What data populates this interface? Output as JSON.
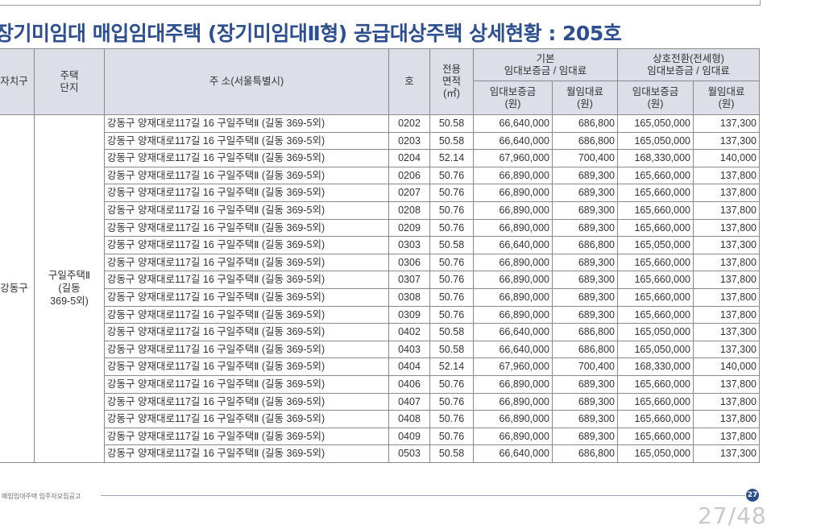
{
  "title": "장기미임대 매입임대주택 (장기미임대Ⅱ형) 공급대상주택 상세현황 : 205호",
  "table": {
    "headers": {
      "district": "자치구",
      "complex": "주택\n단지",
      "address": "주 소(서울특별시)",
      "unit": "호",
      "area": "전용\n면적\n(㎡)",
      "basic_group": "기본\n임대보증금 / 임대료",
      "convert_group": "상호전환(전세형)\n임대보증금 / 임대료",
      "deposit": "임대보증금\n(원)",
      "rent": "월임대료\n(원)"
    },
    "district": "강동구",
    "complex": "구일주택Ⅱ\n(길동\n369-5외)",
    "rows": [
      {
        "address": "강동구 양재대로117길 16 구일주택Ⅱ (길동 369-5외)",
        "unit": "0202",
        "area": "50.58",
        "basic_deposit": "66,640,000",
        "basic_rent": "686,800",
        "conv_deposit": "165,050,000",
        "conv_rent": "137,300"
      },
      {
        "address": "강동구 양재대로117길 16 구일주택Ⅱ (길동 369-5외)",
        "unit": "0203",
        "area": "50.58",
        "basic_deposit": "66,640,000",
        "basic_rent": "686,800",
        "conv_deposit": "165,050,000",
        "conv_rent": "137,300"
      },
      {
        "address": "강동구 양재대로117길 16 구일주택Ⅱ (길동 369-5외)",
        "unit": "0204",
        "area": "52.14",
        "basic_deposit": "67,960,000",
        "basic_rent": "700,400",
        "conv_deposit": "168,330,000",
        "conv_rent": "140,000"
      },
      {
        "address": "강동구 양재대로117길 16 구일주택Ⅱ (길동 369-5외)",
        "unit": "0206",
        "area": "50.76",
        "basic_deposit": "66,890,000",
        "basic_rent": "689,300",
        "conv_deposit": "165,660,000",
        "conv_rent": "137,800"
      },
      {
        "address": "강동구 양재대로117길 16 구일주택Ⅱ (길동 369-5외)",
        "unit": "0207",
        "area": "50.76",
        "basic_deposit": "66,890,000",
        "basic_rent": "689,300",
        "conv_deposit": "165,660,000",
        "conv_rent": "137,800"
      },
      {
        "address": "강동구 양재대로117길 16 구일주택Ⅱ (길동 369-5외)",
        "unit": "0208",
        "area": "50.76",
        "basic_deposit": "66,890,000",
        "basic_rent": "689,300",
        "conv_deposit": "165,660,000",
        "conv_rent": "137,800"
      },
      {
        "address": "강동구 양재대로117길 16 구일주택Ⅱ (길동 369-5외)",
        "unit": "0209",
        "area": "50.76",
        "basic_deposit": "66,890,000",
        "basic_rent": "689,300",
        "conv_deposit": "165,660,000",
        "conv_rent": "137,800"
      },
      {
        "address": "강동구 양재대로117길 16 구일주택Ⅱ (길동 369-5외)",
        "unit": "0303",
        "area": "50.58",
        "basic_deposit": "66,640,000",
        "basic_rent": "686,800",
        "conv_deposit": "165,050,000",
        "conv_rent": "137,300"
      },
      {
        "address": "강동구 양재대로117길 16 구일주택Ⅱ (길동 369-5외)",
        "unit": "0306",
        "area": "50.76",
        "basic_deposit": "66,890,000",
        "basic_rent": "689,300",
        "conv_deposit": "165,660,000",
        "conv_rent": "137,800"
      },
      {
        "address": "강동구 양재대로117길 16 구일주택Ⅱ (길동 369-5외)",
        "unit": "0307",
        "area": "50.76",
        "basic_deposit": "66,890,000",
        "basic_rent": "689,300",
        "conv_deposit": "165,660,000",
        "conv_rent": "137,800"
      },
      {
        "address": "강동구 양재대로117길 16 구일주택Ⅱ (길동 369-5외)",
        "unit": "0308",
        "area": "50.76",
        "basic_deposit": "66,890,000",
        "basic_rent": "689,300",
        "conv_deposit": "165,660,000",
        "conv_rent": "137,800"
      },
      {
        "address": "강동구 양재대로117길 16 구일주택Ⅱ (길동 369-5외)",
        "unit": "0309",
        "area": "50.76",
        "basic_deposit": "66,890,000",
        "basic_rent": "689,300",
        "conv_deposit": "165,660,000",
        "conv_rent": "137,800"
      },
      {
        "address": "강동구 양재대로117길 16 구일주택Ⅱ (길동 369-5외)",
        "unit": "0402",
        "area": "50.58",
        "basic_deposit": "66,640,000",
        "basic_rent": "686,800",
        "conv_deposit": "165,050,000",
        "conv_rent": "137,300"
      },
      {
        "address": "강동구 양재대로117길 16 구일주택Ⅱ (길동 369-5외)",
        "unit": "0403",
        "area": "50.58",
        "basic_deposit": "66,640,000",
        "basic_rent": "686,800",
        "conv_deposit": "165,050,000",
        "conv_rent": "137,300"
      },
      {
        "address": "강동구 양재대로117길 16 구일주택Ⅱ (길동 369-5외)",
        "unit": "0404",
        "area": "52.14",
        "basic_deposit": "67,960,000",
        "basic_rent": "700,400",
        "conv_deposit": "168,330,000",
        "conv_rent": "140,000"
      },
      {
        "address": "강동구 양재대로117길 16 구일주택Ⅱ (길동 369-5외)",
        "unit": "0406",
        "area": "50.76",
        "basic_deposit": "66,890,000",
        "basic_rent": "689,300",
        "conv_deposit": "165,660,000",
        "conv_rent": "137,800"
      },
      {
        "address": "강동구 양재대로117길 16 구일주택Ⅱ (길동 369-5외)",
        "unit": "0407",
        "area": "50.76",
        "basic_deposit": "66,890,000",
        "basic_rent": "689,300",
        "conv_deposit": "165,660,000",
        "conv_rent": "137,800"
      },
      {
        "address": "강동구 양재대로117길 16 구일주택Ⅱ (길동 369-5외)",
        "unit": "0408",
        "area": "50.76",
        "basic_deposit": "66,890,000",
        "basic_rent": "689,300",
        "conv_deposit": "165,660,000",
        "conv_rent": "137,800"
      },
      {
        "address": "강동구 양재대로117길 16 구일주택Ⅱ (길동 369-5외)",
        "unit": "0409",
        "area": "50.76",
        "basic_deposit": "66,890,000",
        "basic_rent": "689,300",
        "conv_deposit": "165,660,000",
        "conv_rent": "137,800"
      },
      {
        "address": "강동구 양재대로117길 16 구일주택Ⅱ (길동 369-5외)",
        "unit": "0503",
        "area": "50.58",
        "basic_deposit": "66,640,000",
        "basic_rent": "686,800",
        "conv_deposit": "165,050,000",
        "conv_rent": "137,300"
      }
    ]
  },
  "footer": {
    "label": "매입임대주택 입주자모집공고",
    "page_badge": "27",
    "page_counter": "27/48"
  },
  "colors": {
    "title": "#2e4f8f",
    "header_bg": "#dcdfe8",
    "border": "#8a8a8a"
  }
}
